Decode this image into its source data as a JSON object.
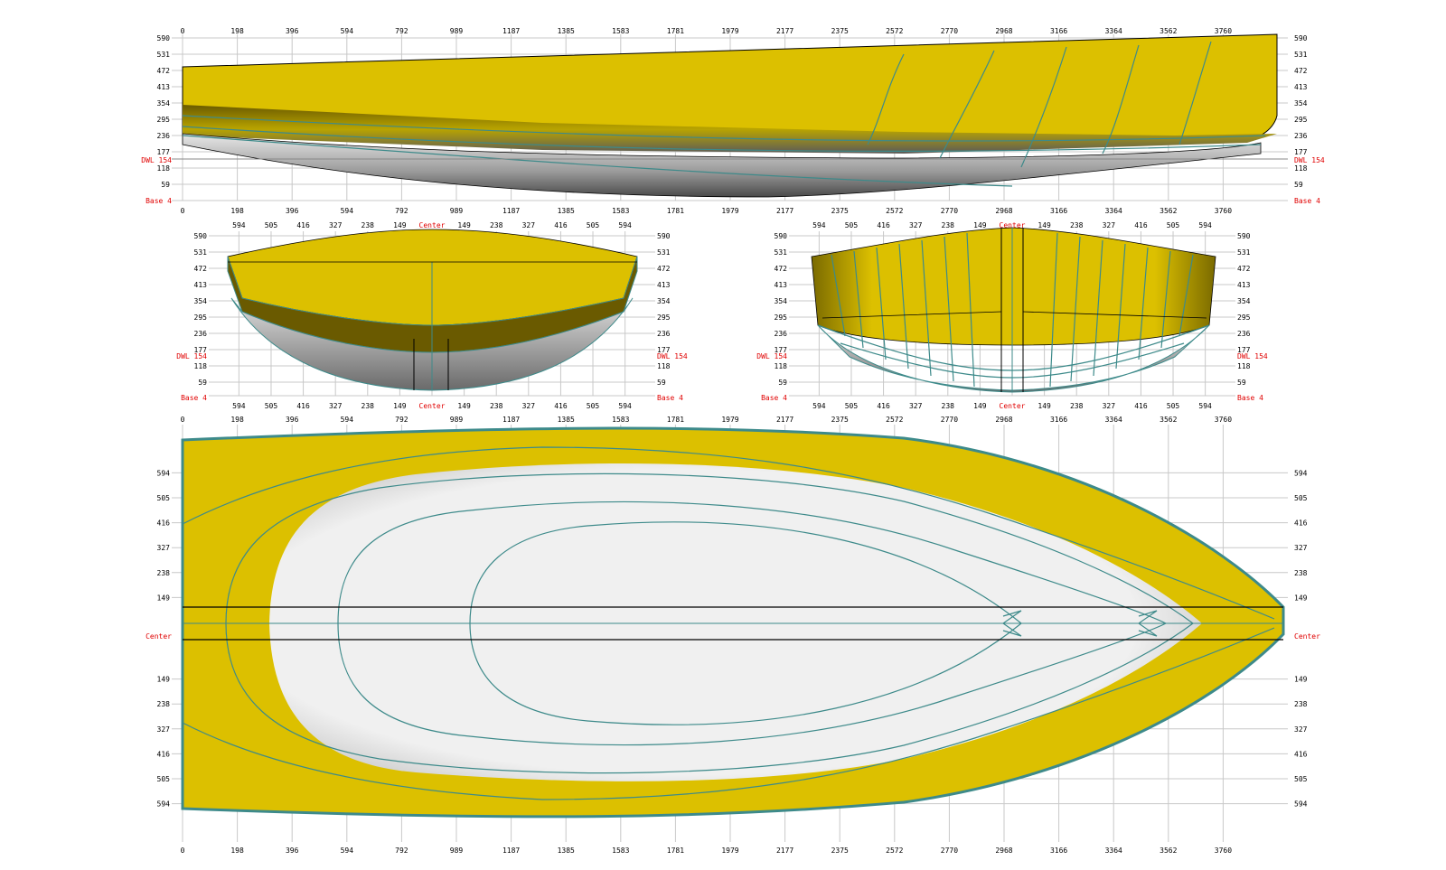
{
  "profile_view": {
    "x_ticks": [
      "0",
      "198",
      "396",
      "594",
      "792",
      "989",
      "1187",
      "1385",
      "1583",
      "1781",
      "1979",
      "2177",
      "2375",
      "2572",
      "2770",
      "2968",
      "3166",
      "3364",
      "3562",
      "3760"
    ],
    "z_ticks": [
      "590",
      "531",
      "472",
      "413",
      "354",
      "295",
      "236",
      "177",
      "118",
      "59"
    ],
    "dwl_label": "DWL 154",
    "base_label": "Base 4"
  },
  "aft_view": {
    "y_ticks_left": [
      "594",
      "505",
      "416",
      "327",
      "238",
      "149"
    ],
    "center_label": "Center",
    "y_ticks_right": [
      "149",
      "238",
      "327",
      "416",
      "505",
      "594"
    ],
    "z_ticks": [
      "590",
      "531",
      "472",
      "413",
      "354",
      "295",
      "236",
      "177",
      "118",
      "59"
    ],
    "dwl_label": "DWL 154",
    "base_label": "Base 4"
  },
  "fwd_view": {
    "y_ticks_left": [
      "594",
      "505",
      "416",
      "327",
      "238",
      "149"
    ],
    "center_label": "Center",
    "y_ticks_right": [
      "149",
      "238",
      "327",
      "416",
      "505",
      "594"
    ],
    "z_ticks": [
      "590",
      "531",
      "472",
      "413",
      "354",
      "295",
      "236",
      "177",
      "118",
      "59"
    ],
    "dwl_label": "DWL 154",
    "base_label": "Base 4"
  },
  "plan_view": {
    "x_ticks": [
      "0",
      "198",
      "396",
      "594",
      "792",
      "989",
      "1187",
      "1385",
      "1583",
      "1781",
      "1979",
      "2177",
      "2375",
      "2572",
      "2770",
      "2968",
      "3166",
      "3364",
      "3562",
      "3760"
    ],
    "y_ticks_top": [
      "594",
      "505",
      "416",
      "327",
      "238",
      "149"
    ],
    "center_label": "Center",
    "y_ticks_bottom": [
      "149",
      "238",
      "327",
      "416",
      "505",
      "594"
    ]
  },
  "colors": {
    "hull_yellow": "#dcc000",
    "hull_dark": "#6a5a00",
    "underwater_white": "#f0f0f0",
    "waterline": "#3d8a8a",
    "grid": "#c8c8c8",
    "label_red": "#e00000"
  }
}
